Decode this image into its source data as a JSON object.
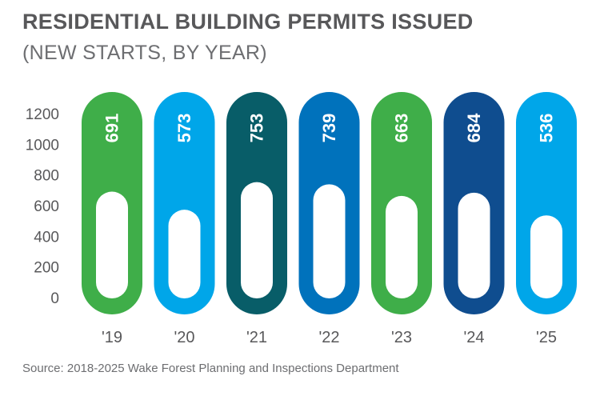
{
  "chart_data": {
    "type": "bar",
    "title": "RESIDENTIAL BUILDING PERMITS ISSUED",
    "subtitle": "(NEW STARTS, BY YEAR)",
    "categories": [
      "'19",
      "'20",
      "'21",
      "'22",
      "'23",
      "'24",
      "'25"
    ],
    "values": [
      691,
      573,
      753,
      739,
      663,
      684,
      536
    ],
    "colors": [
      "#3fae49",
      "#00a6e9",
      "#085d68",
      "#0072bc",
      "#3fae49",
      "#0f4d8f",
      "#00a6e9"
    ],
    "ylim": [
      0,
      1200
    ],
    "yticks": [
      "0",
      "200",
      "400",
      "600",
      "800",
      "1000",
      "1200"
    ],
    "grid": false,
    "source": "Source: 2018-2025 Wake Forest Planning and Inspections Department"
  }
}
